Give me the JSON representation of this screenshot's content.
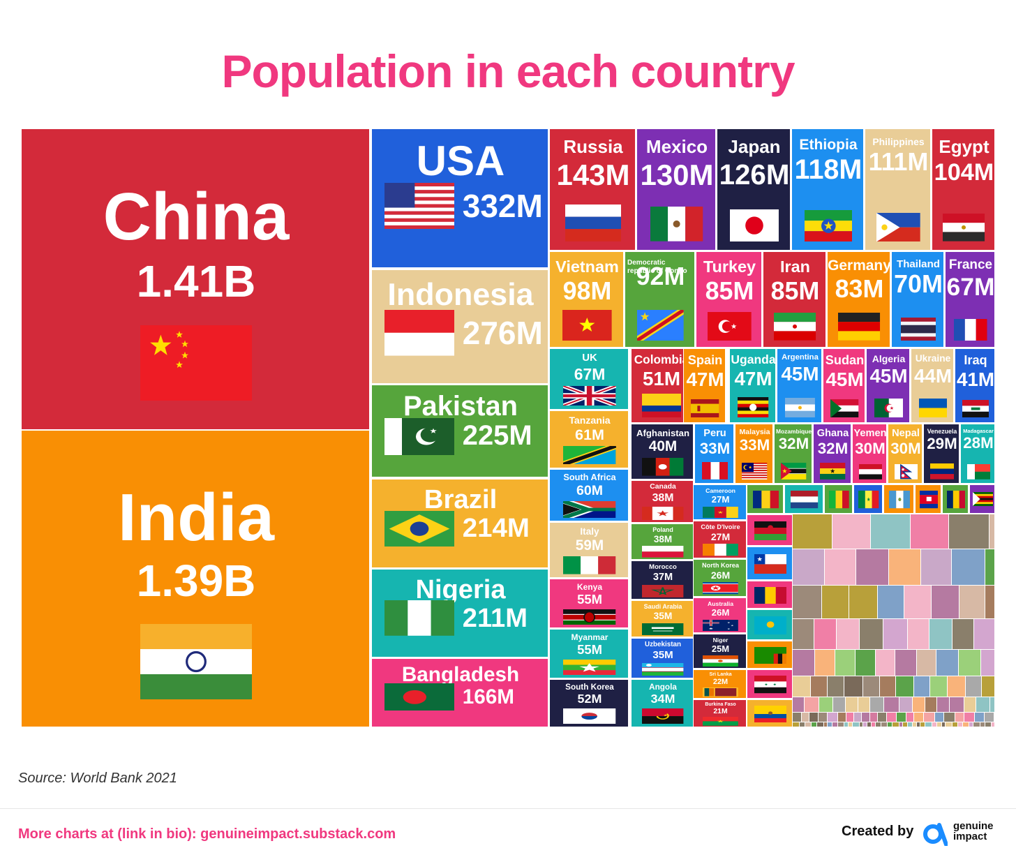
{
  "title": "Population in each country",
  "source": "Source: World Bank 2021",
  "footer": {
    "link_text": "More charts at (link in bio): genuineimpact.substack.com",
    "credit": "Created by",
    "brand_line1": "genuine",
    "brand_line2": "impact"
  },
  "colors": {
    "title": "#f0387f",
    "footer_link": "#f0387f",
    "logo": "#1a8cff"
  },
  "chart_data": {
    "type": "treemap",
    "title": "Population in each country",
    "unit": "people",
    "series": [
      {
        "name": "China",
        "value": 1410000000,
        "label": "1.41B",
        "color": "#d32a3a",
        "flag": "china"
      },
      {
        "name": "India",
        "value": 1390000000,
        "label": "1.39B",
        "color": "#f98f04",
        "flag": "india"
      },
      {
        "name": "USA",
        "value": 332000000,
        "label": "332M",
        "color": "#2060db",
        "flag": "usa"
      },
      {
        "name": "Indonesia",
        "value": 276000000,
        "label": "276M",
        "color": "#e9cd97",
        "flag": "indonesia"
      },
      {
        "name": "Pakistan",
        "value": 225000000,
        "label": "225M",
        "color": "#56a53c",
        "flag": "pakistan"
      },
      {
        "name": "Brazil",
        "value": 214000000,
        "label": "214M",
        "color": "#f5b12d",
        "flag": "brazil"
      },
      {
        "name": "Nigeria",
        "value": 211000000,
        "label": "211M",
        "color": "#16b5b0",
        "flag": "nigeria"
      },
      {
        "name": "Bangladesh",
        "value": 166000000,
        "label": "166M",
        "color": "#f0387f",
        "flag": "bangladesh"
      },
      {
        "name": "Russia",
        "value": 143000000,
        "label": "143M",
        "color": "#d32a3a",
        "flag": "russia"
      },
      {
        "name": "Mexico",
        "value": 130000000,
        "label": "130M",
        "color": "#7d2fb3",
        "flag": "mexico"
      },
      {
        "name": "Japan",
        "value": 126000000,
        "label": "126M",
        "color": "#1f2044",
        "flag": "japan"
      },
      {
        "name": "Ethiopia",
        "value": 118000000,
        "label": "118M",
        "color": "#1d8ff0",
        "flag": "ethiopia"
      },
      {
        "name": "Philippines",
        "value": 111000000,
        "label": "111M",
        "color": "#e9cd97",
        "flag": "philippines"
      },
      {
        "name": "Egypt",
        "value": 104000000,
        "label": "104M",
        "color": "#d32a3a",
        "flag": "egypt"
      },
      {
        "name": "Vietnam",
        "value": 98000000,
        "label": "98M",
        "color": "#f5b12d",
        "flag": "vietnam"
      },
      {
        "name": "Democratic republic of Congo",
        "value": 92000000,
        "label": "92M",
        "color": "#56a53c",
        "flag": "drc"
      },
      {
        "name": "Turkey",
        "value": 85000000,
        "label": "85M",
        "color": "#f0387f",
        "flag": "turkey"
      },
      {
        "name": "Iran",
        "value": 85000000,
        "label": "85M",
        "color": "#d32a3a",
        "flag": "iran"
      },
      {
        "name": "Germany",
        "value": 83000000,
        "label": "83M",
        "color": "#f98f04",
        "flag": "germany"
      },
      {
        "name": "Thailand",
        "value": 70000000,
        "label": "70M",
        "color": "#1d8ff0",
        "flag": "thailand"
      },
      {
        "name": "France",
        "value": 67000000,
        "label": "67M",
        "color": "#7d2fb3",
        "flag": "france"
      },
      {
        "name": "UK",
        "value": 67000000,
        "label": "67M",
        "color": "#16b5b0",
        "flag": "uk"
      },
      {
        "name": "Tanzania",
        "value": 61000000,
        "label": "61M",
        "color": "#f5b12d",
        "flag": "tanzania"
      },
      {
        "name": "South Africa",
        "value": 60000000,
        "label": "60M",
        "color": "#1d8ff0",
        "flag": "south_africa"
      },
      {
        "name": "Italy",
        "value": 59000000,
        "label": "59M",
        "color": "#e9cd97",
        "flag": "italy"
      },
      {
        "name": "Kenya",
        "value": 55000000,
        "label": "55M",
        "color": "#f0387f",
        "flag": "kenya"
      },
      {
        "name": "Myanmar",
        "value": 55000000,
        "label": "55M",
        "color": "#16b5b0",
        "flag": "myanmar"
      },
      {
        "name": "South Korea",
        "value": 52000000,
        "label": "52M",
        "color": "#1f2044",
        "flag": "south_korea"
      },
      {
        "name": "Colombia",
        "value": 51000000,
        "label": "51M",
        "color": "#d32a3a",
        "flag": "colombia"
      },
      {
        "name": "Spain",
        "value": 47000000,
        "label": "47M",
        "color": "#f98f04",
        "flag": "spain"
      },
      {
        "name": "Uganda",
        "value": 47000000,
        "label": "47M",
        "color": "#16b5b0",
        "flag": "uganda"
      },
      {
        "name": "Argentina",
        "value": 45000000,
        "label": "45M",
        "color": "#1d8ff0",
        "flag": "argentina"
      },
      {
        "name": "Sudan",
        "value": 45000000,
        "label": "45M",
        "color": "#f0387f",
        "flag": "sudan"
      },
      {
        "name": "Algeria",
        "value": 45000000,
        "label": "45M",
        "color": "#7d2fb3",
        "flag": "algeria"
      },
      {
        "name": "Ukraine",
        "value": 44000000,
        "label": "44M",
        "color": "#e9cd97",
        "flag": "ukraine"
      },
      {
        "name": "Iraq",
        "value": 41000000,
        "label": "41M",
        "color": "#2060db",
        "flag": "iraq"
      },
      {
        "name": "Afghanistan",
        "value": 40000000,
        "label": "40M",
        "color": "#1f2044",
        "flag": "afghanistan"
      },
      {
        "name": "Canada",
        "value": 38000000,
        "label": "38M",
        "color": "#d32a3a",
        "flag": "canada"
      },
      {
        "name": "Poland",
        "value": 38000000,
        "label": "38M",
        "color": "#56a53c",
        "flag": "poland"
      },
      {
        "name": "Morocco",
        "value": 37000000,
        "label": "37M",
        "color": "#1f2044",
        "flag": "morocco"
      },
      {
        "name": "Saudi Arabia",
        "value": 35000000,
        "label": "35M",
        "color": "#f5b12d",
        "flag": "saudi"
      },
      {
        "name": "Uzbekistan",
        "value": 35000000,
        "label": "35M",
        "color": "#2060db",
        "flag": "uzbekistan"
      },
      {
        "name": "Angola",
        "value": 34000000,
        "label": "34M",
        "color": "#16b5b0",
        "flag": "angola"
      },
      {
        "name": "Peru",
        "value": 33000000,
        "label": "33M",
        "color": "#1d8ff0",
        "flag": "peru"
      },
      {
        "name": "Malaysia",
        "value": 33000000,
        "label": "33M",
        "color": "#f98f04",
        "flag": "malaysia"
      },
      {
        "name": "Mozambique",
        "value": 32000000,
        "label": "32M",
        "color": "#56a53c",
        "flag": "mozambique"
      },
      {
        "name": "Ghana",
        "value": 32000000,
        "label": "32M",
        "color": "#7d2fb3",
        "flag": "ghana"
      },
      {
        "name": "Yemen",
        "value": 30000000,
        "label": "30M",
        "color": "#f0387f",
        "flag": "yemen"
      },
      {
        "name": "Nepal",
        "value": 30000000,
        "label": "30M",
        "color": "#f5b12d",
        "flag": "nepal"
      },
      {
        "name": "Venezuela",
        "value": 29000000,
        "label": "29M",
        "color": "#1f2044",
        "flag": "venezuela"
      },
      {
        "name": "Madagascar",
        "value": 28000000,
        "label": "28M",
        "color": "#16b5b0",
        "flag": "madagascar"
      },
      {
        "name": "Cameroon",
        "value": 27000000,
        "label": "27M",
        "color": "#1d8ff0",
        "flag": "cameroon"
      },
      {
        "name": "Côte D'Ivoire",
        "value": 27000000,
        "label": "27M",
        "color": "#d32a3a",
        "flag": "cote_divoire"
      },
      {
        "name": "North Korea",
        "value": 26000000,
        "label": "26M",
        "color": "#56a53c",
        "flag": "north_korea"
      },
      {
        "name": "Australia",
        "value": 26000000,
        "label": "26M",
        "color": "#f0387f",
        "flag": "australia"
      },
      {
        "name": "Niger",
        "value": 25000000,
        "label": "25M",
        "color": "#1f2044",
        "flag": "niger"
      },
      {
        "name": "Sri Lanka",
        "value": 22000000,
        "label": "22M",
        "color": "#f98f04",
        "flag": "sri_lanka"
      },
      {
        "name": "Burkina Faso",
        "value": 21000000,
        "label": "21M",
        "color": "#d32a3a",
        "flag": "burkina_faso"
      }
    ]
  }
}
